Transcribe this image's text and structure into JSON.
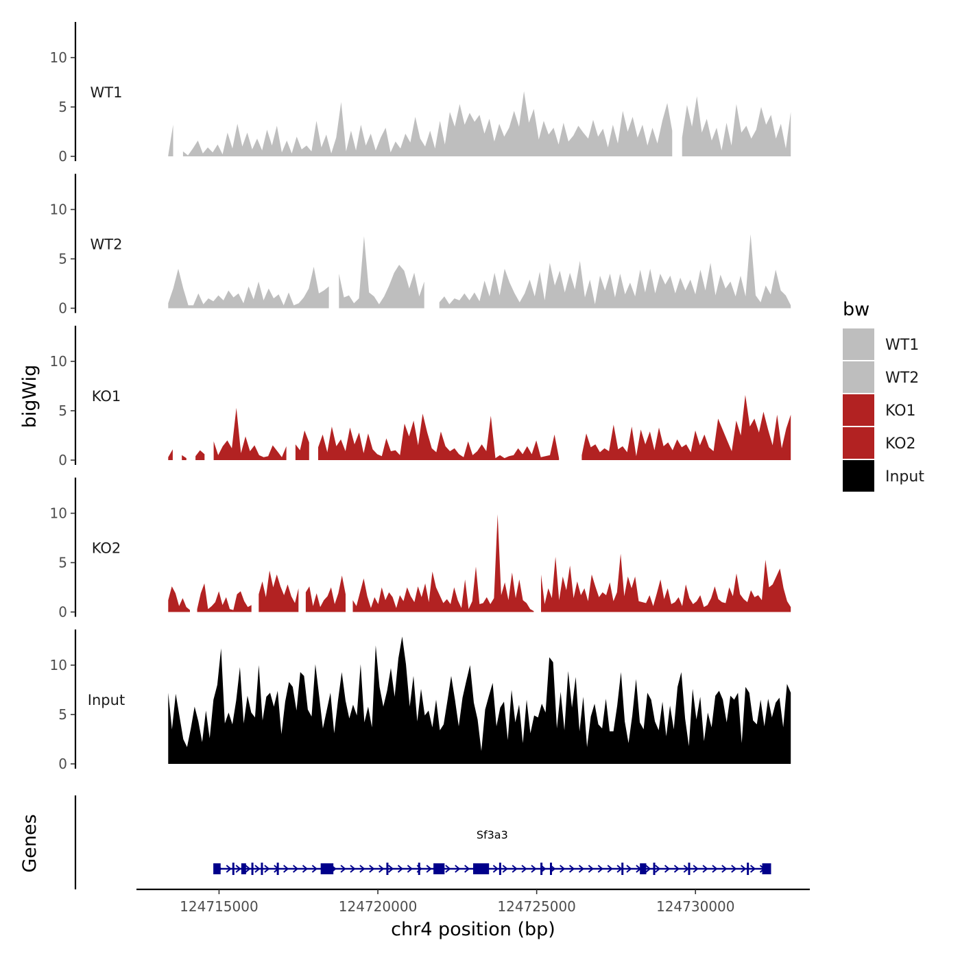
{
  "chart_data": {
    "type": "area",
    "ylabel": "bigWig",
    "xlabel": "chr4 position (bp)",
    "y_ticks": [
      0,
      5,
      10
    ],
    "ylim": [
      0,
      13.5
    ],
    "xlim": [
      124712400,
      124733600
    ],
    "x_ticks": [
      124715000,
      124720000,
      124725000,
      124730000
    ],
    "x_tick_labels": [
      "124715000",
      "124720000",
      "124725000",
      "124730000"
    ],
    "legend": {
      "title": "bw",
      "position": "right",
      "entries": [
        {
          "label": "WT1",
          "color": "#bebebe"
        },
        {
          "label": "WT2",
          "color": "#bebebe"
        },
        {
          "label": "KO1",
          "color": "#b22222"
        },
        {
          "label": "KO2",
          "color": "#b22222"
        },
        {
          "label": "Input",
          "color": "#000000"
        }
      ]
    },
    "signal_range": [
      124713400,
      124733000
    ],
    "tracks": [
      {
        "name": "WT1",
        "color": "#bebebe",
        "gaps": [
          [
            124713650,
            124713720
          ],
          [
            124719500,
            124719600
          ],
          [
            124725400,
            124725500
          ],
          [
            124729400,
            124729500
          ]
        ],
        "values": [
          0.1,
          3.2,
          0.6,
          0.5,
          0.1,
          0.8,
          1.6,
          0.3,
          0.9,
          0.4,
          1.2,
          0.2,
          2.4,
          0.8,
          3.3,
          1.0,
          2.4,
          0.7,
          1.8,
          0.6,
          2.7,
          1.1,
          3.1,
          0.4,
          1.6,
          0.3,
          2.0,
          0.7,
          1.1,
          0.5,
          3.6,
          0.9,
          2.2,
          0.3,
          1.9,
          5.5,
          0.5,
          2.6,
          0.6,
          3.2,
          1.1,
          2.3,
          0.6,
          1.9,
          2.9,
          0.4,
          1.5,
          0.8,
          2.3,
          1.4,
          4.0,
          1.8,
          1.0,
          2.6,
          0.8,
          3.6,
          1.2,
          4.5,
          3.0,
          5.3,
          3.2,
          4.4,
          3.5,
          4.2,
          2.3,
          3.8,
          1.5,
          3.3,
          2.0,
          2.9,
          4.6,
          3.0,
          6.6,
          3.4,
          4.8,
          1.7,
          3.6,
          2.2,
          2.9,
          1.2,
          3.4,
          1.5,
          2.1,
          3.1,
          2.4,
          1.8,
          3.7,
          2.0,
          2.8,
          0.9,
          3.2,
          1.3,
          4.6,
          2.5,
          4.0,
          1.9,
          3.2,
          1.1,
          2.9,
          1.3,
          3.6,
          5.4,
          2.6,
          4.6,
          1.9,
          5.2,
          3.0,
          6.1,
          2.4,
          3.8,
          1.6,
          2.9,
          0.6,
          3.4,
          1.1,
          5.3,
          2.4,
          3.1,
          1.8,
          2.7,
          5.0,
          3.2,
          4.2,
          1.8,
          3.3,
          0.8,
          4.5
        ]
      },
      {
        "name": "WT2",
        "color": "#bebebe",
        "gaps": [
          [
            124713750,
            124713870
          ],
          [
            124718600,
            124718700
          ],
          [
            124721600,
            124721900
          ],
          [
            124729400,
            124729500
          ]
        ],
        "values": [
          0.5,
          2.0,
          4.0,
          2.0,
          0.3,
          0.3,
          1.5,
          0.4,
          1.0,
          0.7,
          1.3,
          0.8,
          1.8,
          1.1,
          1.5,
          0.5,
          2.2,
          0.9,
          2.7,
          0.8,
          2.0,
          1.0,
          1.4,
          0.3,
          1.6,
          0.3,
          0.5,
          1.1,
          2.0,
          4.2,
          1.5,
          1.8,
          2.2,
          1.0,
          3.5,
          1.1,
          1.3,
          0.5,
          1.0,
          7.3,
          1.6,
          1.2,
          0.4,
          1.2,
          2.3,
          3.6,
          4.4,
          3.8,
          2.0,
          3.6,
          1.2,
          2.7,
          0.8,
          1.4,
          0.6,
          1.2,
          0.4,
          1.0,
          0.8,
          1.5,
          0.8,
          1.6,
          0.7,
          2.8,
          1.2,
          3.6,
          1.3,
          4.0,
          2.6,
          1.5,
          0.6,
          1.5,
          2.9,
          1.2,
          3.7,
          0.8,
          4.6,
          2.3,
          3.8,
          1.6,
          3.6,
          1.9,
          4.8,
          1.1,
          2.9,
          0.4,
          3.3,
          1.8,
          3.5,
          1.1,
          3.5,
          1.4,
          2.6,
          1.2,
          3.9,
          1.6,
          4.0,
          1.5,
          3.5,
          2.4,
          3.3,
          1.5,
          3.1,
          1.8,
          2.9,
          1.4,
          3.9,
          1.8,
          4.6,
          1.3,
          3.4,
          2.0,
          2.7,
          1.2,
          3.3,
          1.2,
          7.5,
          1.3,
          0.6,
          2.3,
          1.4,
          3.9,
          1.8,
          1.3,
          0.3
        ]
      },
      {
        "name": "KO1",
        "color": "#b22222",
        "gaps": [
          [
            124713650,
            124713800
          ],
          [
            124714100,
            124714200
          ],
          [
            124714600,
            124714700
          ],
          [
            124717200,
            124717300
          ],
          [
            124717900,
            124718050
          ],
          [
            124725800,
            124726300
          ]
        ],
        "values": [
          0.3,
          1.1,
          0.1,
          0.5,
          0.2,
          1.8,
          0.4,
          1.0,
          0.6,
          0.2,
          1.9,
          0.5,
          1.4,
          2.0,
          1.2,
          5.3,
          0.7,
          2.4,
          0.9,
          1.5,
          0.5,
          0.3,
          0.4,
          1.5,
          0.9,
          0.3,
          1.4,
          0.6,
          1.6,
          1.0,
          3.0,
          1.8,
          3.2,
          1.3,
          2.6,
          0.8,
          3.4,
          1.4,
          2.1,
          0.9,
          3.3,
          1.6,
          2.8,
          0.7,
          2.7,
          1.1,
          0.6,
          0.4,
          2.2,
          0.9,
          1.0,
          0.5,
          3.7,
          2.4,
          4.0,
          1.5,
          4.7,
          2.8,
          1.2,
          0.8,
          2.9,
          1.4,
          0.9,
          1.2,
          0.6,
          0.3,
          1.9,
          0.5,
          0.9,
          1.6,
          0.9,
          4.5,
          0.2,
          0.5,
          0.2,
          0.4,
          0.5,
          1.2,
          0.6,
          1.4,
          0.6,
          2.0,
          0.3,
          0.4,
          0.5,
          2.6,
          0.2,
          0.4,
          0.2,
          0.3,
          0.1,
          0.5,
          2.7,
          1.3,
          1.6,
          0.8,
          1.2,
          0.9,
          3.6,
          1.1,
          1.4,
          0.8,
          3.4,
          0.4,
          3.1,
          1.6,
          2.9,
          1.0,
          3.3,
          1.4,
          1.8,
          1.0,
          2.1,
          1.3,
          1.6,
          0.8,
          3.0,
          1.5,
          2.6,
          1.3,
          0.9,
          4.2,
          3.1,
          2.0,
          0.9,
          4.0,
          2.5,
          6.6,
          3.4,
          4.2,
          2.8,
          4.9,
          3.1,
          1.5,
          4.6,
          1.2,
          3.2,
          4.6
        ]
      },
      {
        "name": "KO2",
        "color": "#b22222",
        "gaps": [
          [
            124713750,
            124713850
          ],
          [
            124714150,
            124714200
          ],
          [
            124716100,
            124716200
          ],
          [
            124717600,
            124717700
          ],
          [
            124719000,
            124719100
          ],
          [
            124725000,
            124725100
          ]
        ],
        "values": [
          1.2,
          2.6,
          1.9,
          0.6,
          1.4,
          0.5,
          0.2,
          0.2,
          0.3,
          1.9,
          2.9,
          0.3,
          0.6,
          1.0,
          2.1,
          0.7,
          1.5,
          0.3,
          0.2,
          1.8,
          2.1,
          1.1,
          0.5,
          0.7,
          1.3,
          1.8,
          3.1,
          1.5,
          4.2,
          2.5,
          3.8,
          2.6,
          1.7,
          2.8,
          1.6,
          0.9,
          2.4,
          1.2,
          2.0,
          2.6,
          0.6,
          1.9,
          0.5,
          1.2,
          1.6,
          2.5,
          0.8,
          1.9,
          3.7,
          1.8,
          0.4,
          1.2,
          0.6,
          2.0,
          3.4,
          1.6,
          0.4,
          1.5,
          0.8,
          2.5,
          1.2,
          2.0,
          1.5,
          0.4,
          1.7,
          1.1,
          2.5,
          1.6,
          1.0,
          2.6,
          1.5,
          2.9,
          1.0,
          4.1,
          2.5,
          1.7,
          0.9,
          1.3,
          0.8,
          2.5,
          1.2,
          0.4,
          3.3,
          0.3,
          1.1,
          4.6,
          0.8,
          0.9,
          1.5,
          0.8,
          1.4,
          9.9,
          1.7,
          3.0,
          1.2,
          4.0,
          1.4,
          3.3,
          1.2,
          0.9,
          0.3,
          0.1,
          0.5,
          3.8,
          0.8,
          2.4,
          1.4,
          5.6,
          1.2,
          3.6,
          2.2,
          4.7,
          1.4,
          3.1,
          1.7,
          2.4,
          1.1,
          3.8,
          2.6,
          1.5,
          2.0,
          1.7,
          3.0,
          1.1,
          2.0,
          5.9,
          1.6,
          3.6,
          2.4,
          3.6,
          1.1,
          1.0,
          0.9,
          1.7,
          0.6,
          1.9,
          3.3,
          1.3,
          2.4,
          0.8,
          1.0,
          1.5,
          0.6,
          2.8,
          1.4,
          0.8,
          1.1,
          1.7,
          0.5,
          0.7,
          1.4,
          2.6,
          1.3,
          1.0,
          0.9,
          2.5,
          1.6,
          3.9,
          1.8,
          1.3,
          1.0,
          2.2,
          1.5,
          1.7,
          1.2,
          5.3,
          2.5,
          2.8,
          3.6,
          4.4,
          2.4,
          1.1,
          0.5
        ]
      },
      {
        "name": "Input",
        "color": "#000000",
        "gaps": [],
        "values": [
          7.2,
          3.5,
          7.1,
          4.8,
          2.5,
          1.7,
          3.6,
          5.8,
          4.3,
          2.2,
          5.4,
          2.6,
          6.5,
          8.0,
          11.7,
          4.1,
          5.2,
          4.0,
          6.4,
          9.8,
          4.1,
          6.9,
          5.2,
          4.7,
          10.0,
          4.4,
          6.8,
          7.2,
          5.8,
          7.4,
          3.0,
          6.3,
          8.3,
          7.8,
          5.4,
          9.3,
          8.9,
          5.5,
          4.8,
          10.1,
          6.9,
          3.6,
          5.4,
          7.2,
          3.1,
          6.4,
          9.3,
          6.4,
          4.6,
          6.0,
          4.9,
          10.1,
          4.2,
          5.8,
          3.7,
          12.0,
          7.8,
          5.8,
          7.4,
          9.7,
          6.8,
          10.7,
          12.9,
          10.1,
          5.8,
          8.9,
          4.3,
          7.6,
          4.9,
          5.4,
          3.7,
          6.5,
          3.4,
          4.0,
          6.4,
          8.9,
          6.5,
          3.8,
          6.7,
          8.4,
          10.0,
          6.2,
          4.5,
          1.3,
          5.5,
          6.9,
          8.2,
          3.8,
          5.7,
          6.3,
          2.4,
          7.5,
          4.2,
          6.0,
          2.1,
          6.5,
          3.1,
          4.9,
          4.7,
          6.1,
          5.2,
          10.8,
          10.3,
          3.6,
          7.3,
          3.4,
          9.4,
          5.7,
          8.8,
          3.3,
          6.8,
          1.7,
          4.8,
          6.1,
          4.0,
          3.6,
          6.6,
          3.3,
          3.3,
          5.9,
          9.3,
          4.3,
          2.1,
          4.9,
          8.6,
          4.2,
          3.5,
          7.2,
          6.5,
          4.3,
          3.4,
          6.3,
          2.8,
          5.9,
          3.5,
          7.8,
          9.3,
          4.6,
          1.8,
          7.6,
          4.5,
          6.8,
          2.3,
          5.2,
          3.7,
          6.9,
          7.4,
          6.5,
          4.2,
          6.9,
          6.5,
          7.2,
          2.1,
          7.8,
          7.2,
          4.4,
          4.0,
          6.5,
          3.8,
          6.6,
          4.7,
          6.2,
          6.7,
          3.7,
          8.1,
          7.2
        ]
      }
    ],
    "genes_label": "Genes",
    "gene": {
      "name": "Sf3a3",
      "strand": "+",
      "color": "#00008b",
      "start": 124714850,
      "end": 124732350,
      "exons": [
        [
          124714820,
          124715050
        ],
        [
          124715700,
          124715850
        ],
        [
          124718200,
          124718600
        ],
        [
          124721750,
          124722100
        ],
        [
          124723000,
          124723500
        ],
        [
          124728250,
          124728450
        ],
        [
          124732100,
          124732380
        ]
      ],
      "exon_ticks": [
        124715450,
        124716050,
        124716350,
        124716850,
        124720300,
        124721300,
        124723850,
        124725150,
        124725450,
        124727700,
        124728700,
        124729800,
        124731650
      ]
    }
  }
}
